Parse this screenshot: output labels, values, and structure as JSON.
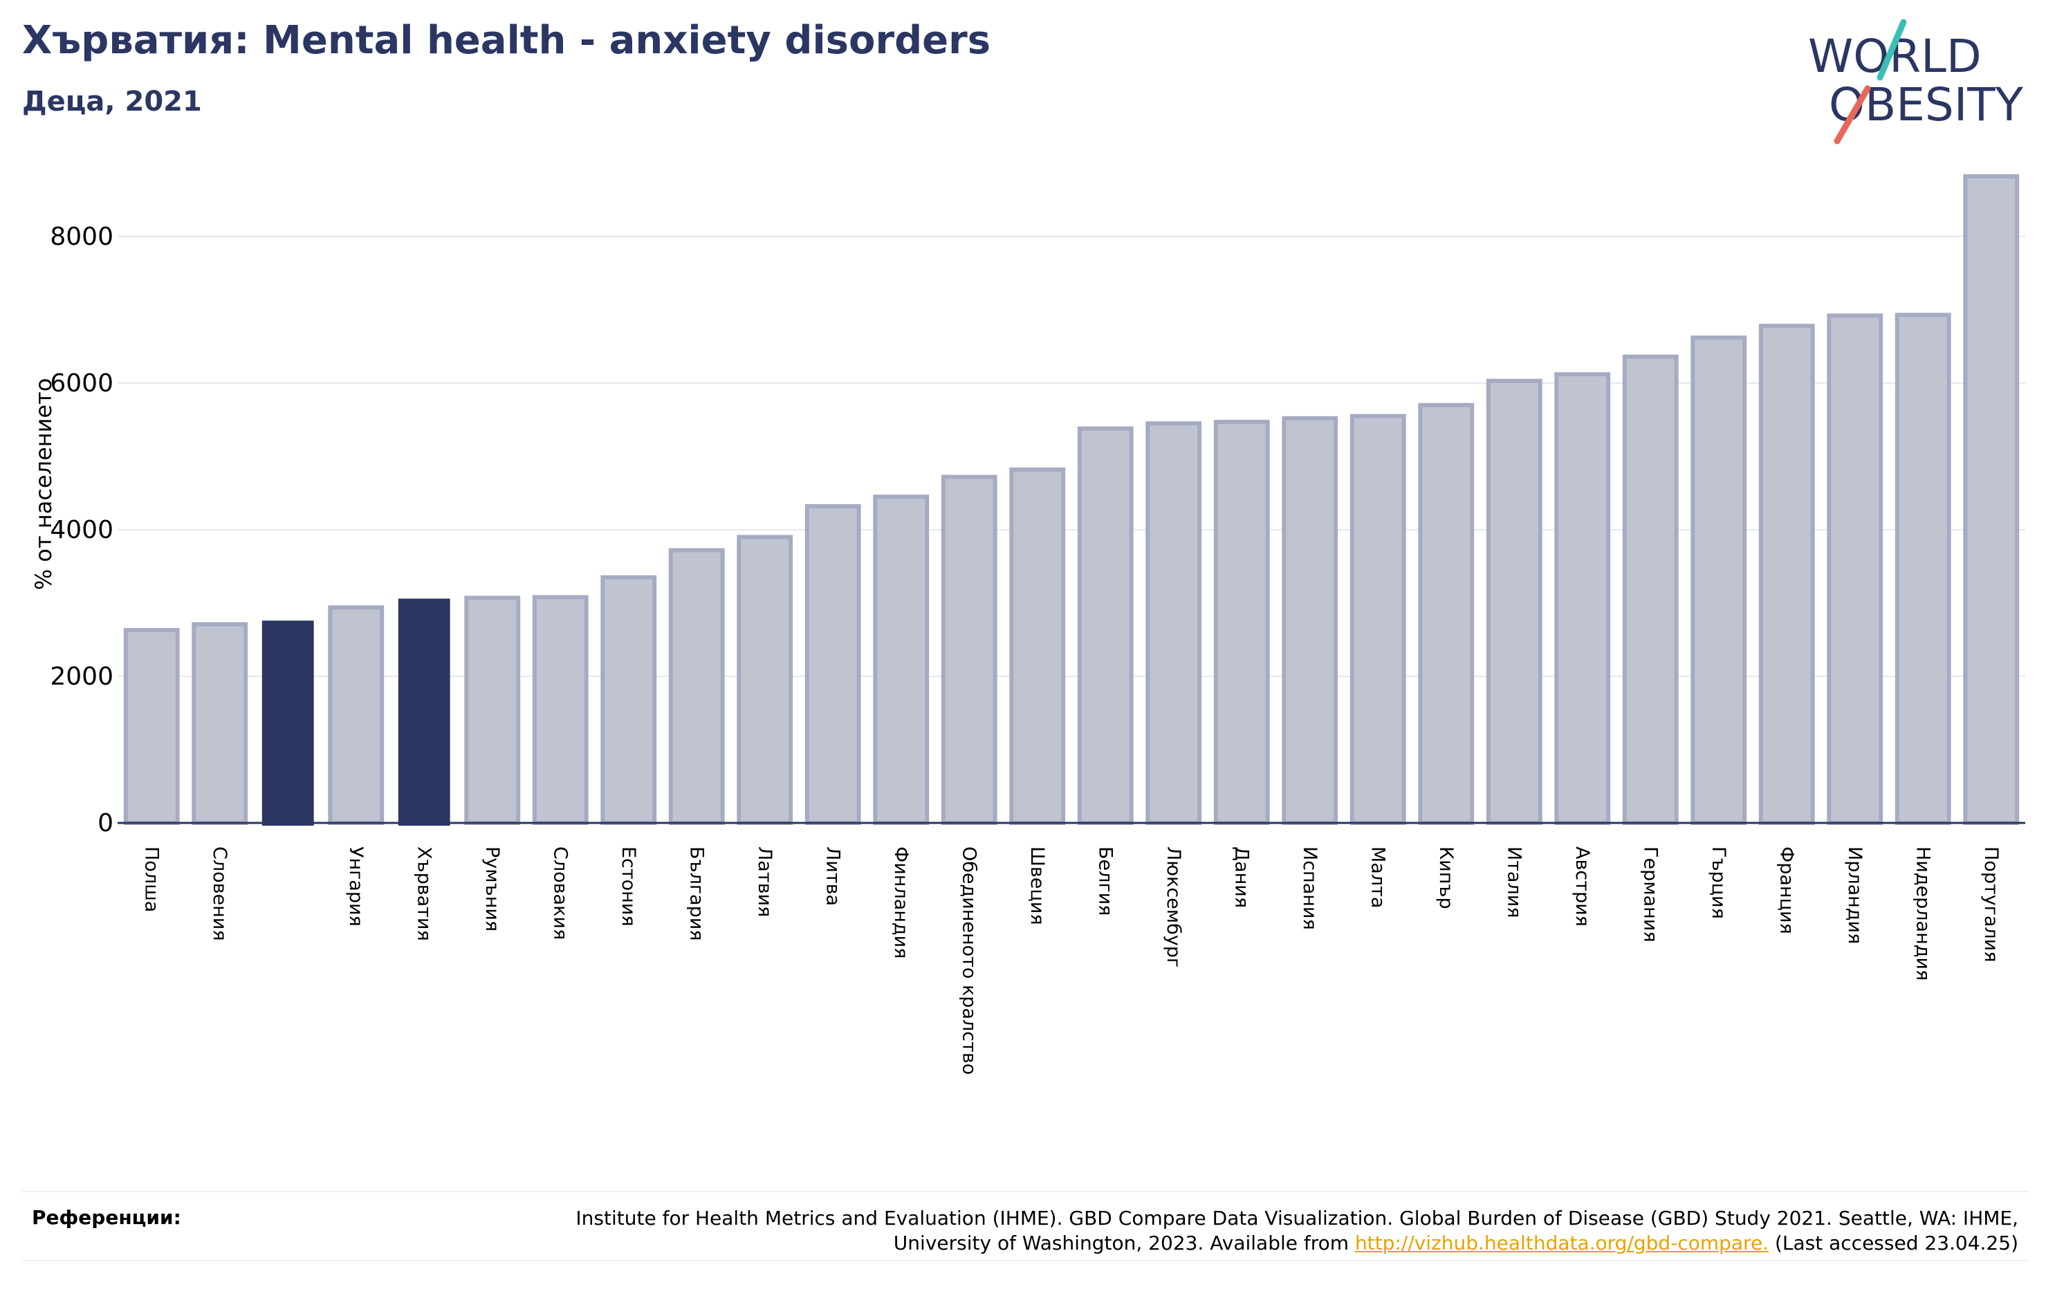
{
  "header": {
    "title": "Хърватия: Mental health - anxiety disorders",
    "subtitle": "Деца, 2021"
  },
  "logo": {
    "line1": "WORLD",
    "line2": "OBESITY"
  },
  "colors": {
    "highlight": "#2b3663",
    "bar_fill": "#c0c4d1",
    "bar_stroke": "#a5abc2",
    "text": "#2b3663",
    "grid": "#e6e8ee",
    "link": "#e8a200",
    "logo_teal": "#3bbfb5",
    "logo_coral": "#e8675a"
  },
  "chart_data": {
    "type": "bar",
    "title": "",
    "xlabel": "",
    "ylabel": "% от населението",
    "ylim": [
      0,
      9000
    ],
    "yticks": [
      0,
      2000,
      4000,
      6000,
      8000
    ],
    "grid": true,
    "categories": [
      "Полша",
      "Словения",
      "",
      "Унгария",
      "Хърватия",
      "Румъния",
      "Словакия",
      "Естония",
      "България",
      "Латвия",
      "Литва",
      "Финландия",
      "Обединеното кралство",
      "Швеция",
      "Белгия",
      "Люксембург",
      "Дания",
      "Испания",
      "Малта",
      "Кипър",
      "Италия",
      "Австрия",
      "Германия",
      "Гърция",
      "Франция",
      "Ирландия",
      "Нидерландия",
      "Португалия"
    ],
    "values": [
      2630,
      2710,
      2760,
      2940,
      3060,
      3070,
      3080,
      3350,
      3720,
      3900,
      4320,
      4450,
      4720,
      4820,
      5380,
      5450,
      5470,
      5520,
      5550,
      5700,
      6030,
      6120,
      6360,
      6620,
      6780,
      6920,
      6930,
      8820
    ],
    "highlighted": [
      2,
      4
    ]
  },
  "references": {
    "label": "Референции:",
    "text": "Institute for Health Metrics and Evaluation (IHME). GBD Compare Data Visualization. Global Burden of Disease (GBD) Study 2021. Seattle, WA: IHME, University of Washington, 2023. Available from ",
    "link": "http://vizhub.healthdata.org/gbd-compare.",
    "suffix": " (Last accessed 23.04.25)"
  }
}
